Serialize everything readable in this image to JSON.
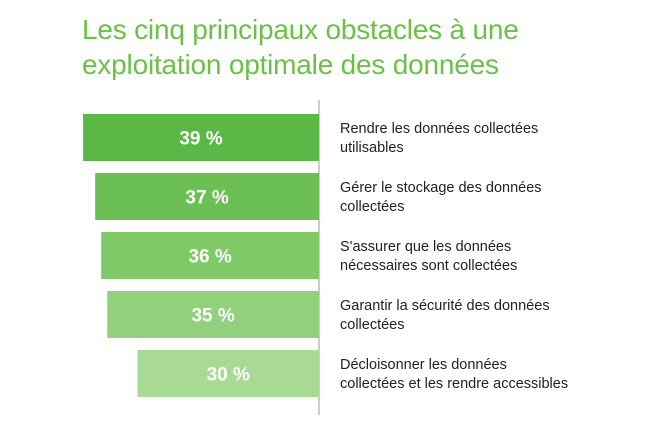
{
  "title_lines": [
    "Les cinq principaux obstacles à une",
    "exploitation optimale des données"
  ],
  "colors": {
    "title": "#6cc04a",
    "bars": [
      "#5bb846",
      "#6cc053",
      "#7fc966",
      "#93d07e",
      "#a8da96"
    ],
    "axis": "#999999",
    "label": "#222222"
  },
  "chart_data": {
    "type": "bar",
    "orientation": "horizontal",
    "categories": [
      [
        "Rendre les données collectées",
        "utilisables"
      ],
      [
        "Gérer le stockage des données",
        "collectées"
      ],
      [
        "S'assurer que les données",
        "nécessaires sont collectées"
      ],
      [
        "Garantir la sécurité des données",
        "collectées"
      ],
      [
        "Décloisonner les données",
        "collectées et les rendre accessibles"
      ]
    ],
    "values": [
      39,
      37,
      36,
      35,
      30
    ],
    "value_labels": [
      "39 %",
      "37 %",
      "36 %",
      "35 %",
      "30 %"
    ],
    "value_unit": "%",
    "xlim": [
      0,
      40
    ],
    "grid": false,
    "legend": "none"
  }
}
